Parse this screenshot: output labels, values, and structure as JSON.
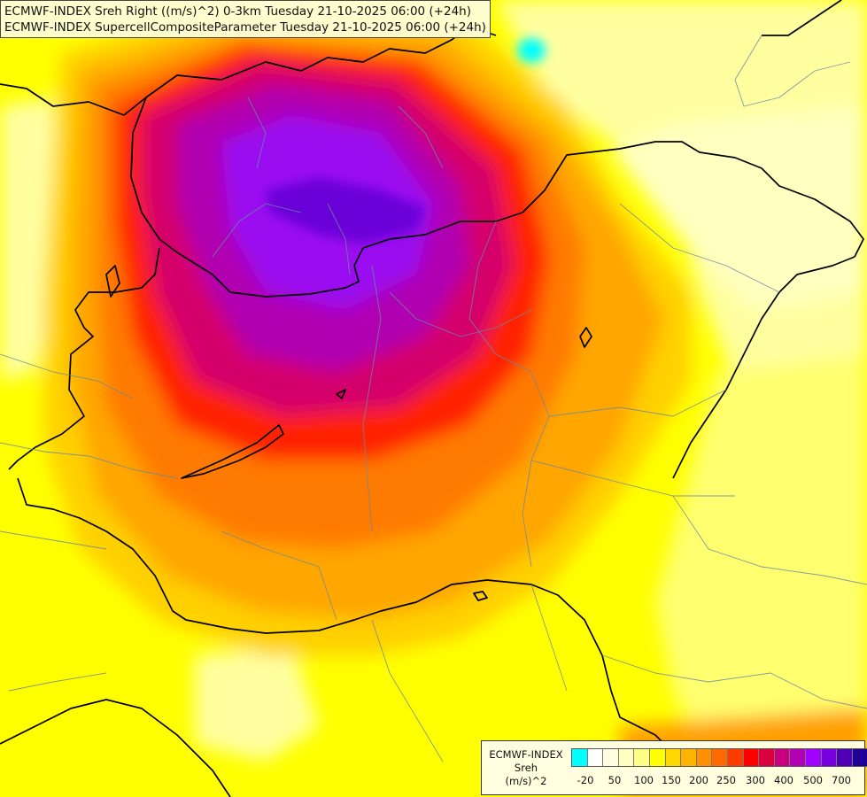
{
  "title": {
    "line1": "ECMWF-INDEX Sreh Right ((m/s)^2) 0-3km Tuesday 21-10-2025 06:00 (+24h)",
    "line2": "ECMWF-INDEX SupercellCompositeParameter Tuesday 21-10-2025 06:00 (+24h)"
  },
  "legend": {
    "source": "ECMWF-INDEX",
    "parameter": "Sreh",
    "unit": "(m/s)^2",
    "colors": [
      "#00ffff",
      "#ffffff",
      "#ffffe0",
      "#ffffc0",
      "#ffff88",
      "#ffff00",
      "#ffd700",
      "#ffb300",
      "#ff9000",
      "#ff6a00",
      "#ff3c00",
      "#ff0000",
      "#dc0040",
      "#c80080",
      "#b400b4",
      "#a000ff",
      "#7800dc",
      "#5000b4",
      "#1e0096"
    ],
    "tick_labels": [
      "-20",
      "50",
      "100",
      "150",
      "200",
      "250",
      "300",
      "400",
      "500",
      "700"
    ]
  }
}
